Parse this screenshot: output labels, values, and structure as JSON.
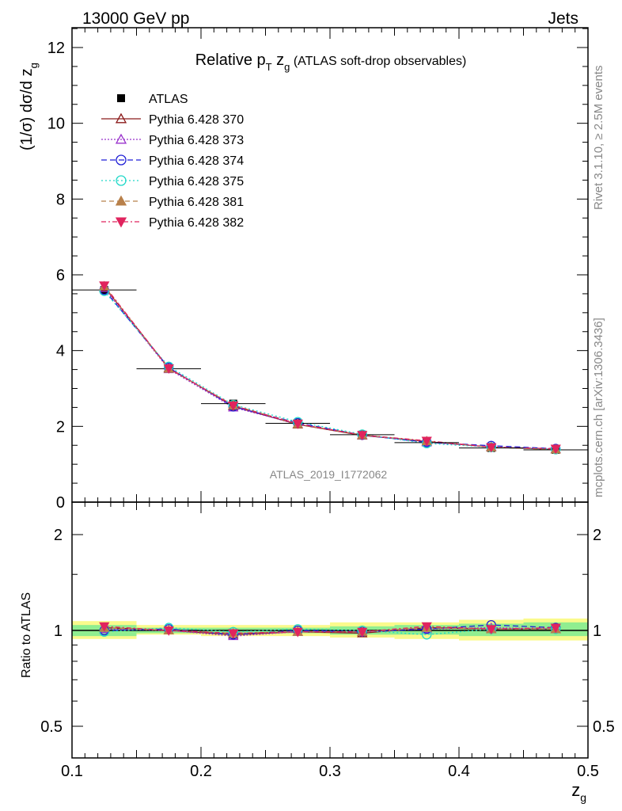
{
  "header": {
    "left": "13000 GeV pp",
    "right": "Jets"
  },
  "side_labels": {
    "rivet": "Rivet 3.1.10, ≥ 2.5M events",
    "mcplots": "mcplots.cern.ch [arXiv:1306.3436]"
  },
  "chart_data": [
    {
      "type": "line",
      "title": {
        "main": "Relative p",
        "sub_T": "T",
        "mid": " z",
        "sub_g": "g",
        "tail": " (ATLAS soft-drop observables)"
      },
      "ylabel": "(1/σ) dσ/d z",
      "ylabel_sub": "g",
      "watermark": "ATLAS_2019_I1772062",
      "xlim": [
        0.1,
        0.5
      ],
      "ylim": [
        0,
        12.5
      ],
      "yticks": [
        0,
        2,
        4,
        6,
        8,
        10,
        12
      ],
      "legend_position": "top-left",
      "x": [
        0.125,
        0.175,
        0.225,
        0.275,
        0.325,
        0.375,
        0.425,
        0.475
      ],
      "reference": {
        "name": "ATLAS",
        "values": [
          5.6,
          3.52,
          2.6,
          2.08,
          1.78,
          1.57,
          1.43,
          1.38
        ]
      },
      "series": [
        {
          "name": "Pythia 6.428 370",
          "color": "#8b1a1a",
          "marker": "triangle-open",
          "dash": "",
          "values": [
            5.68,
            3.54,
            2.53,
            2.05,
            1.76,
            1.6,
            1.45,
            1.39
          ]
        },
        {
          "name": "Pythia 6.428 373",
          "color": "#9932cc",
          "marker": "triangle-open",
          "dash": "2,2",
          "values": [
            5.65,
            3.51,
            2.5,
            2.06,
            1.77,
            1.58,
            1.46,
            1.4
          ]
        },
        {
          "name": "Pythia 6.428 374",
          "color": "#1f1fd6",
          "marker": "circle-open",
          "dash": "7,4",
          "values": [
            5.6,
            3.55,
            2.52,
            2.09,
            1.77,
            1.58,
            1.49,
            1.41
          ]
        },
        {
          "name": "Pythia 6.428 375",
          "color": "#20d8c8",
          "marker": "circle-open",
          "dash": "2,3",
          "values": [
            5.57,
            3.58,
            2.57,
            2.12,
            1.79,
            1.55,
            1.45,
            1.39
          ]
        },
        {
          "name": "Pythia 6.428 381",
          "color": "#b8804a",
          "marker": "triangle-filled",
          "dash": "6,4",
          "values": [
            5.7,
            3.52,
            2.56,
            2.06,
            1.77,
            1.61,
            1.45,
            1.39
          ]
        },
        {
          "name": "Pythia 6.428 382",
          "color": "#e0245e",
          "marker": "triangle-down-filled",
          "dash": "6,3,2,3",
          "values": [
            5.72,
            3.53,
            2.55,
            2.07,
            1.77,
            1.62,
            1.45,
            1.41
          ]
        }
      ]
    },
    {
      "type": "line",
      "ylabel": "Ratio to ATLAS",
      "xlabel": "z",
      "xlabel_sub": "g",
      "xlim": [
        0.1,
        0.5
      ],
      "ylim": [
        0.4,
        2.5
      ],
      "log_scale": true,
      "xticks": [
        "0.1",
        "0.2",
        "0.3",
        "0.4",
        "0.5"
      ],
      "yticks": [
        "0.5",
        "1",
        "2"
      ],
      "x": [
        0.125,
        0.175,
        0.225,
        0.275,
        0.325,
        0.375,
        0.425,
        0.475
      ],
      "bins": [
        [
          0.1,
          0.15
        ],
        [
          0.15,
          0.2
        ],
        [
          0.2,
          0.25
        ],
        [
          0.25,
          0.3
        ],
        [
          0.3,
          0.35
        ],
        [
          0.35,
          0.4
        ],
        [
          0.4,
          0.45
        ],
        [
          0.45,
          0.5
        ]
      ],
      "band_yellow": [
        [
          0.94,
          1.07
        ],
        [
          0.97,
          1.04
        ],
        [
          0.96,
          1.04
        ],
        [
          0.96,
          1.04
        ],
        [
          0.95,
          1.06
        ],
        [
          0.94,
          1.06
        ],
        [
          0.93,
          1.08
        ],
        [
          0.93,
          1.09
        ]
      ],
      "band_green": [
        [
          0.96,
          1.04
        ],
        [
          0.98,
          1.02
        ],
        [
          0.98,
          1.02
        ],
        [
          0.98,
          1.02
        ],
        [
          0.97,
          1.03
        ],
        [
          0.97,
          1.04
        ],
        [
          0.96,
          1.05
        ],
        [
          0.96,
          1.06
        ]
      ],
      "series": [
        {
          "name": "Pythia 6.428 370",
          "values": [
            1.02,
            1.0,
            0.97,
            0.99,
            0.98,
            1.02,
            1.01,
            1.01
          ]
        },
        {
          "name": "Pythia 6.428 373",
          "values": [
            1.01,
            1.0,
            0.96,
            0.99,
            0.99,
            1.01,
            1.02,
            1.01
          ]
        },
        {
          "name": "Pythia 6.428 374",
          "values": [
            1.0,
            1.01,
            0.97,
            1.0,
            0.99,
            1.01,
            1.04,
            1.02
          ]
        },
        {
          "name": "Pythia 6.428 375",
          "values": [
            0.99,
            1.02,
            0.99,
            1.01,
            1.0,
            0.97,
            1.01,
            1.01
          ]
        },
        {
          "name": "Pythia 6.428 381",
          "values": [
            1.02,
            1.0,
            0.98,
            0.99,
            0.99,
            1.02,
            1.01,
            1.01
          ]
        },
        {
          "name": "Pythia 6.428 382",
          "values": [
            1.03,
            1.0,
            0.98,
            0.99,
            0.99,
            1.03,
            1.01,
            1.02
          ]
        }
      ]
    }
  ]
}
